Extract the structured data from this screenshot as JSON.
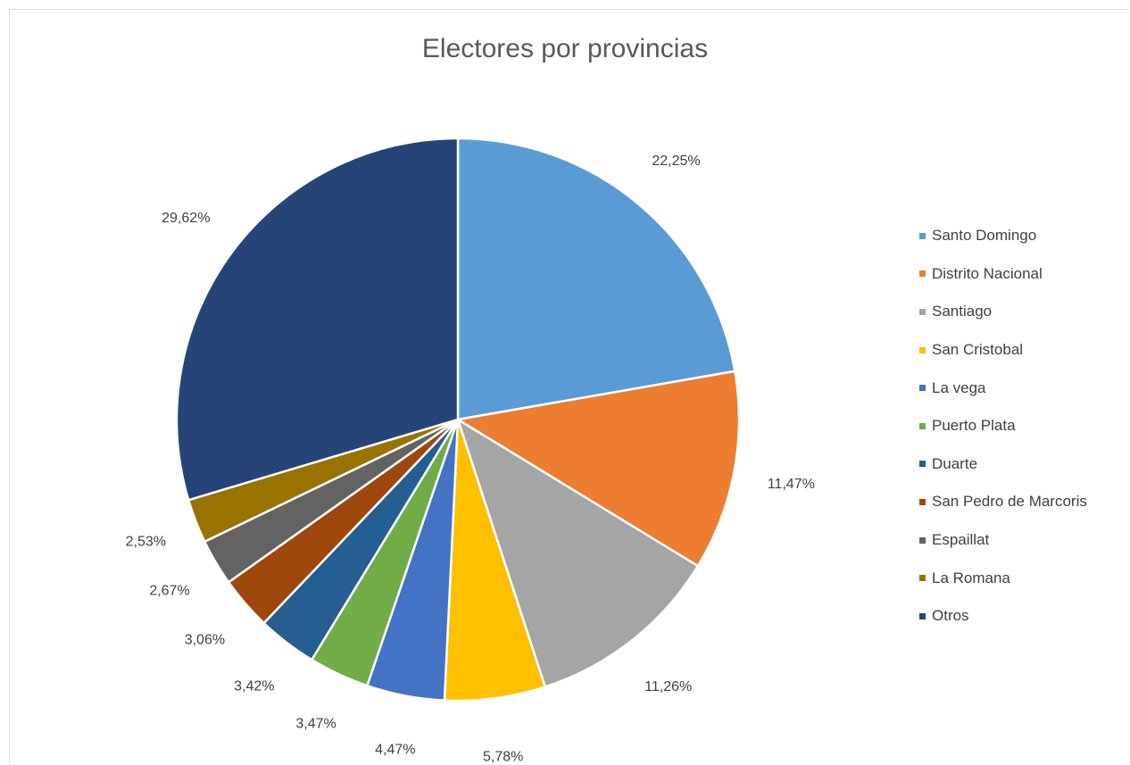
{
  "chart_data": {
    "type": "pie",
    "title": "Electores por provincias",
    "legend_position": "right",
    "slices": [
      {
        "name": "Santo Domingo",
        "value": 22.25,
        "label": "22,25%",
        "color": "#5b9bd5"
      },
      {
        "name": "Distrito Nacional",
        "value": 11.47,
        "label": "11,47%",
        "color": "#ed7d31"
      },
      {
        "name": "Santiago",
        "value": 11.26,
        "label": "11,26%",
        "color": "#a5a5a5"
      },
      {
        "name": "San Cristobal",
        "value": 5.78,
        "label": "5,78%",
        "color": "#ffc000"
      },
      {
        "name": "La vega",
        "value": 4.47,
        "label": "4,47%",
        "color": "#4472c4"
      },
      {
        "name": "Puerto Plata",
        "value": 3.47,
        "label": "3,47%",
        "color": "#70ad47"
      },
      {
        "name": "Duarte",
        "value": 3.42,
        "label": "3,42%",
        "color": "#255e91"
      },
      {
        "name": "San Pedro de Marcoris",
        "value": 3.06,
        "label": "3,06%",
        "color": "#9e480e"
      },
      {
        "name": "Espaillat",
        "value": 2.67,
        "label": "2,67%",
        "color": "#636363"
      },
      {
        "name": "La Romana",
        "value": 2.53,
        "label": "2,53%",
        "color": "#997300"
      },
      {
        "name": "Otros",
        "value": 29.62,
        "label": "29,62%",
        "color": "#264478"
      }
    ]
  }
}
